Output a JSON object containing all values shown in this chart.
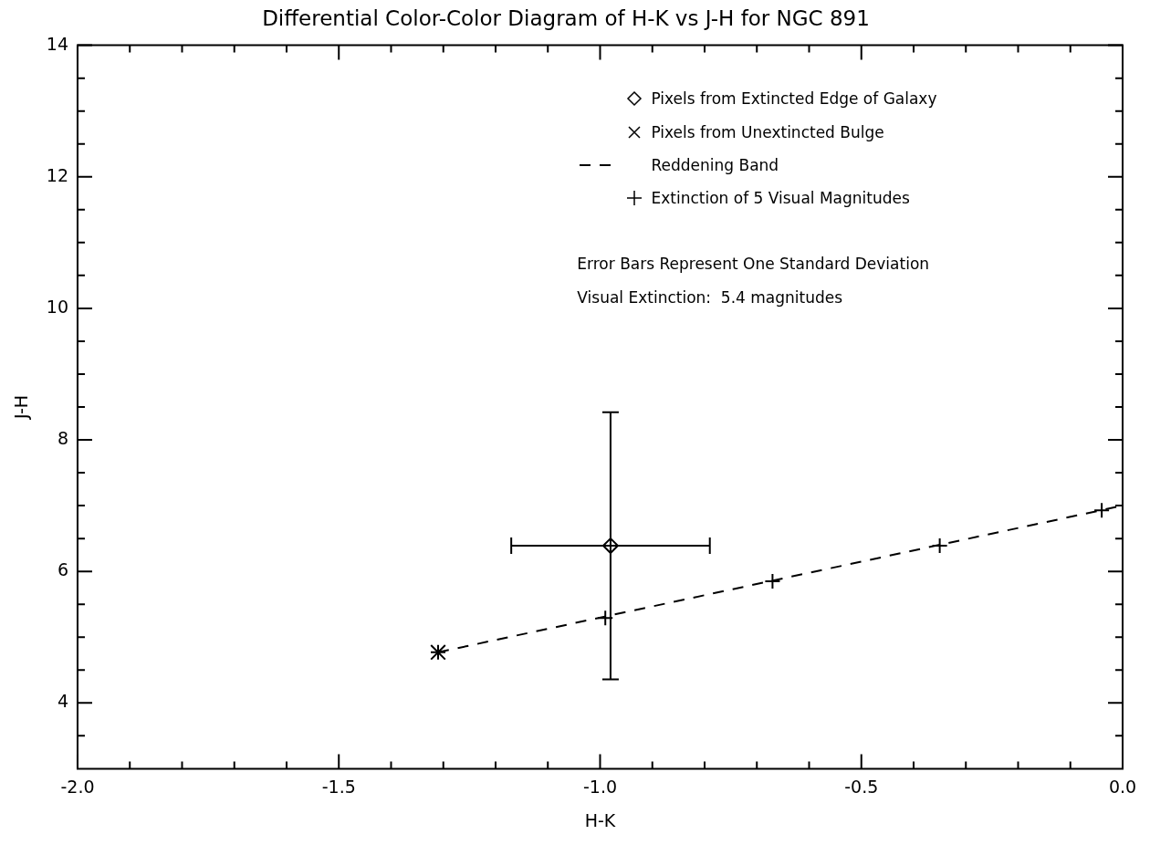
{
  "chart_data": {
    "type": "scatter",
    "title": "Differential Color-Color Diagram of H-K vs J-H for NGC 891",
    "xlabel": "H-K",
    "ylabel": "J-H",
    "xlim": [
      -2.0,
      0.0
    ],
    "xticks": [
      {
        "value": -2.0,
        "label": "-2.0"
      },
      {
        "value": -1.9,
        "label": null
      },
      {
        "value": -1.8,
        "label": null
      },
      {
        "value": -1.7,
        "label": null
      },
      {
        "value": -1.6,
        "label": null
      },
      {
        "value": -1.5,
        "label": "-1.5"
      },
      {
        "value": -1.4,
        "label": null
      },
      {
        "value": -1.3,
        "label": null
      },
      {
        "value": -1.2,
        "label": null
      },
      {
        "value": -1.1,
        "label": null
      },
      {
        "value": -1.0,
        "label": "-1.0"
      },
      {
        "value": -0.9,
        "label": null
      },
      {
        "value": -0.8,
        "label": null
      },
      {
        "value": -0.7,
        "label": null
      },
      {
        "value": -0.6,
        "label": null
      },
      {
        "value": -0.5,
        "label": "-0.5"
      },
      {
        "value": -0.4,
        "label": null
      },
      {
        "value": -0.3,
        "label": null
      },
      {
        "value": -0.2,
        "label": null
      },
      {
        "value": -0.1,
        "label": null
      },
      {
        "value": 0.0,
        "label": "0.0"
      }
    ],
    "ylim": [
      3,
      14
    ],
    "yticks": [
      {
        "value": 3.5,
        "label": null
      },
      4,
      {
        "value": 4.5,
        "label": null
      },
      {
        "value": 5,
        "label": null
      },
      {
        "value": 5.5,
        "label": null
      },
      6,
      {
        "value": 6.5,
        "label": null
      },
      {
        "value": 7,
        "label": null
      },
      {
        "value": 7.5,
        "label": null
      },
      8,
      {
        "value": 8.5,
        "label": null
      },
      {
        "value": 9,
        "label": null
      },
      {
        "value": 9.5,
        "label": null
      },
      10,
      {
        "value": 10.5,
        "label": null
      },
      {
        "value": 11,
        "label": null
      },
      {
        "value": 11.5,
        "label": null
      },
      12,
      {
        "value": 12.5,
        "label": null
      },
      {
        "value": 13,
        "label": null
      },
      {
        "value": 13.5,
        "label": null
      },
      14
    ],
    "grid": false,
    "legend": "top right",
    "series": [
      {
        "name": "Pixels from Extincted Edge of Galaxy",
        "marker": "diamond",
        "color": "#000000",
        "x": [
          -0.98
        ],
        "values": [
          6.39
        ],
        "errors": [
          2.03
        ],
        "xerrors": [
          0.19
        ]
      },
      {
        "name": "Pixels from Unextincted Bulge",
        "marker": "cross",
        "color": "#000000",
        "x": [
          -1.31
        ],
        "values": [
          4.77
        ]
      },
      {
        "name": "Reddening Band",
        "type": "line",
        "marker": "none",
        "line_style": "dashed",
        "color": "#000000",
        "x": [
          -1.31,
          0.0
        ],
        "values": [
          4.77,
          7.0
        ]
      },
      {
        "name": "Extinction of 5 Visual Magnitudes",
        "marker": "plus",
        "color": "#000000",
        "x": [
          -1.31,
          -0.99,
          -0.67,
          -0.35,
          -0.04
        ],
        "values": [
          4.77,
          5.29,
          5.85,
          6.39,
          6.93
        ]
      }
    ],
    "annotations": [
      "Error Bars Represent One Standard Deviation",
      "Visual Extinction:  5.4 magnitudes"
    ]
  }
}
